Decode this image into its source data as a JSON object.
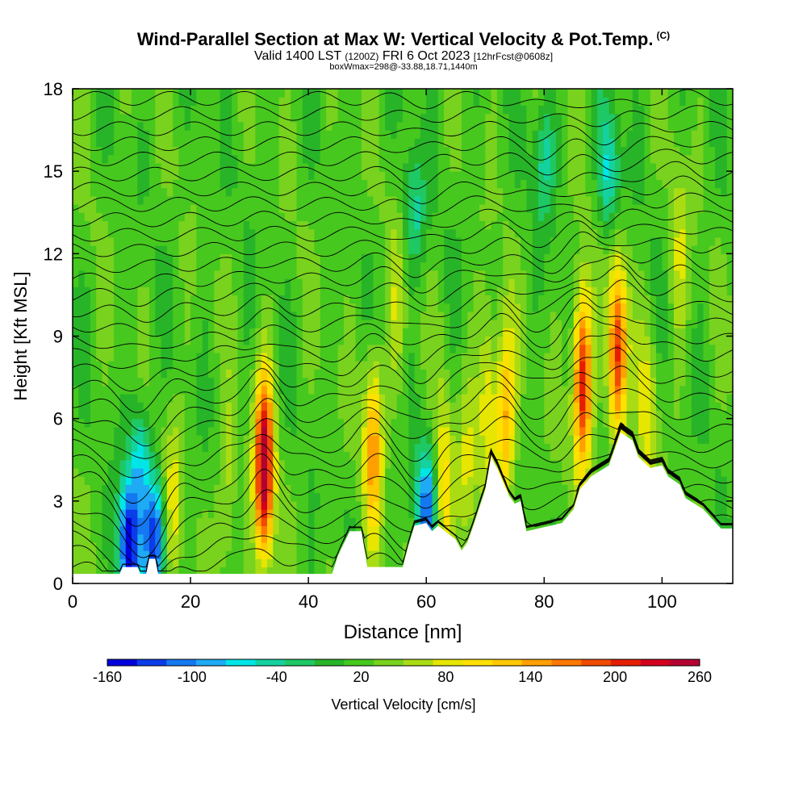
{
  "header": {
    "title": "Wind-Parallel Section at Max W: Vertical Velocity & Pot.Temp.",
    "copyright_mark": "(C)",
    "subtitle_main": "Valid 1400 LST",
    "subtitle_utc": "(1200Z)",
    "subtitle_date": "FRI 6 Oct 2023",
    "subtitle_fcst": "[12hrFcst@0608z]",
    "subsubtitle": "boxWmax=298@-33.88,18.71,1440m"
  },
  "chart_data": {
    "type": "heatmap",
    "title": "Wind-Parallel Section at Max W: Vertical Velocity & Pot.Temp.",
    "xlabel": "Distance [nm]",
    "ylabel": "Height [Kft MSL]",
    "xlim": [
      0,
      112
    ],
    "ylim": [
      0,
      18
    ],
    "x_ticks": [
      0,
      20,
      40,
      60,
      80,
      100
    ],
    "y_ticks": [
      0,
      3,
      6,
      9,
      12,
      15,
      18
    ],
    "background_w": 20,
    "colorbar": {
      "label": "Vertical Velocity [cm/s]",
      "ticks": [
        -160,
        -100,
        -40,
        20,
        80,
        140,
        200,
        260
      ],
      "colors": [
        "#0000dd",
        "#0a3ce8",
        "#1478f0",
        "#1eaaf5",
        "#00e6e6",
        "#14d2a0",
        "#1ec864",
        "#28b428",
        "#46c81e",
        "#78d21e",
        "#aadc14",
        "#e6e600",
        "#ffe100",
        "#ffc800",
        "#ffa000",
        "#ff7800",
        "#f04b00",
        "#e61e00",
        "#d2001e",
        "#b40032"
      ]
    },
    "terrain": [
      [
        0,
        0.35
      ],
      [
        8,
        0.35
      ],
      [
        8.5,
        0.6
      ],
      [
        11,
        0.6
      ],
      [
        11.5,
        0.35
      ],
      [
        12.5,
        0.35
      ],
      [
        13,
        0.9
      ],
      [
        14,
        0.9
      ],
      [
        14.5,
        0.35
      ],
      [
        40,
        0.35
      ],
      [
        44,
        0.35
      ],
      [
        45,
        1
      ],
      [
        47,
        1.9
      ],
      [
        49,
        1.9
      ],
      [
        50,
        0.6
      ],
      [
        56,
        0.6
      ],
      [
        57,
        1.4
      ],
      [
        58,
        2.1
      ],
      [
        60,
        2.2
      ],
      [
        61,
        1.9
      ],
      [
        62,
        2.1
      ],
      [
        65,
        1.6
      ],
      [
        66,
        1.2
      ],
      [
        67,
        1.5
      ],
      [
        68,
        2.1
      ],
      [
        70,
        3.4
      ],
      [
        71,
        4.6
      ],
      [
        72,
        4.2
      ],
      [
        74,
        3.2
      ],
      [
        75,
        2.9
      ],
      [
        76,
        3.0
      ],
      [
        77,
        1.9
      ],
      [
        83,
        2.2
      ],
      [
        85,
        2.7
      ],
      [
        86,
        3.4
      ],
      [
        88,
        3.9
      ],
      [
        91,
        4.3
      ],
      [
        93,
        5.5
      ],
      [
        95,
        5.2
      ],
      [
        96,
        4.6
      ],
      [
        98,
        4.2
      ],
      [
        100,
        4.3
      ],
      [
        101,
        3.9
      ],
      [
        103,
        3.6
      ],
      [
        104,
        3.1
      ],
      [
        107,
        2.7
      ],
      [
        110,
        2.0
      ],
      [
        112,
        2.0
      ]
    ],
    "updrafts": [
      {
        "x": 32.5,
        "z": 4.2,
        "w": 270
      },
      {
        "x": 86.5,
        "z": 7.4,
        "w": 230
      },
      {
        "x": 92.5,
        "z": 8.4,
        "w": 210
      },
      {
        "x": 51,
        "z": 5.0,
        "w": 150
      },
      {
        "x": 73.5,
        "z": 6.0,
        "w": 140
      },
      {
        "x": 63,
        "z": 3.2,
        "w": 110
      },
      {
        "x": 70.5,
        "z": 6.5,
        "w": 100
      },
      {
        "x": 17,
        "z": 3.0,
        "w": 80
      },
      {
        "x": 26,
        "z": 3.0,
        "w": 70
      },
      {
        "x": 103,
        "z": 12.0,
        "w": 70
      },
      {
        "x": 97.5,
        "z": 6.0,
        "w": 80
      },
      {
        "x": 55,
        "z": 10.0,
        "w": 60
      },
      {
        "x": 67,
        "z": 4.5,
        "w": 70
      }
    ],
    "downdrafts": [
      {
        "x": 9.5,
        "z": 1.4,
        "w": -160
      },
      {
        "x": 14,
        "z": 1.6,
        "w": -130
      },
      {
        "x": 60,
        "z": 2.6,
        "w": -110
      },
      {
        "x": 91,
        "z": 15.0,
        "w": -60
      },
      {
        "x": 80,
        "z": 15.5,
        "w": -40
      },
      {
        "x": 58,
        "z": 13.5,
        "w": -40
      },
      {
        "x": 11.5,
        "z": 4.5,
        "w": -60
      }
    ],
    "isentropes_count": 32
  }
}
